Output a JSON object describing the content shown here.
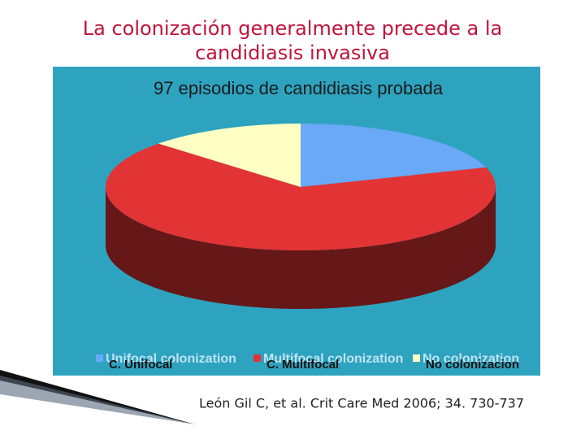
{
  "title_lines": [
    "La colonización generalmente precede a la",
    "candidiasis invasiva"
  ],
  "citation": "León Gil C, et al. Crit Care Med 2006; 34. 730-737",
  "chart_data": {
    "type": "pie3d",
    "title": "97 episodios de candidiasis probada",
    "categories": [
      "C. Unifocal",
      "C. Multifocal",
      "No colonizacion"
    ],
    "legend_underlay": [
      "Unifocal colonization",
      "Multifocal colonization",
      "No colonization"
    ],
    "values": [
      20,
      67,
      13
    ],
    "colors": [
      "#6aa8f8",
      "#e23434",
      "#ffffc4"
    ]
  }
}
